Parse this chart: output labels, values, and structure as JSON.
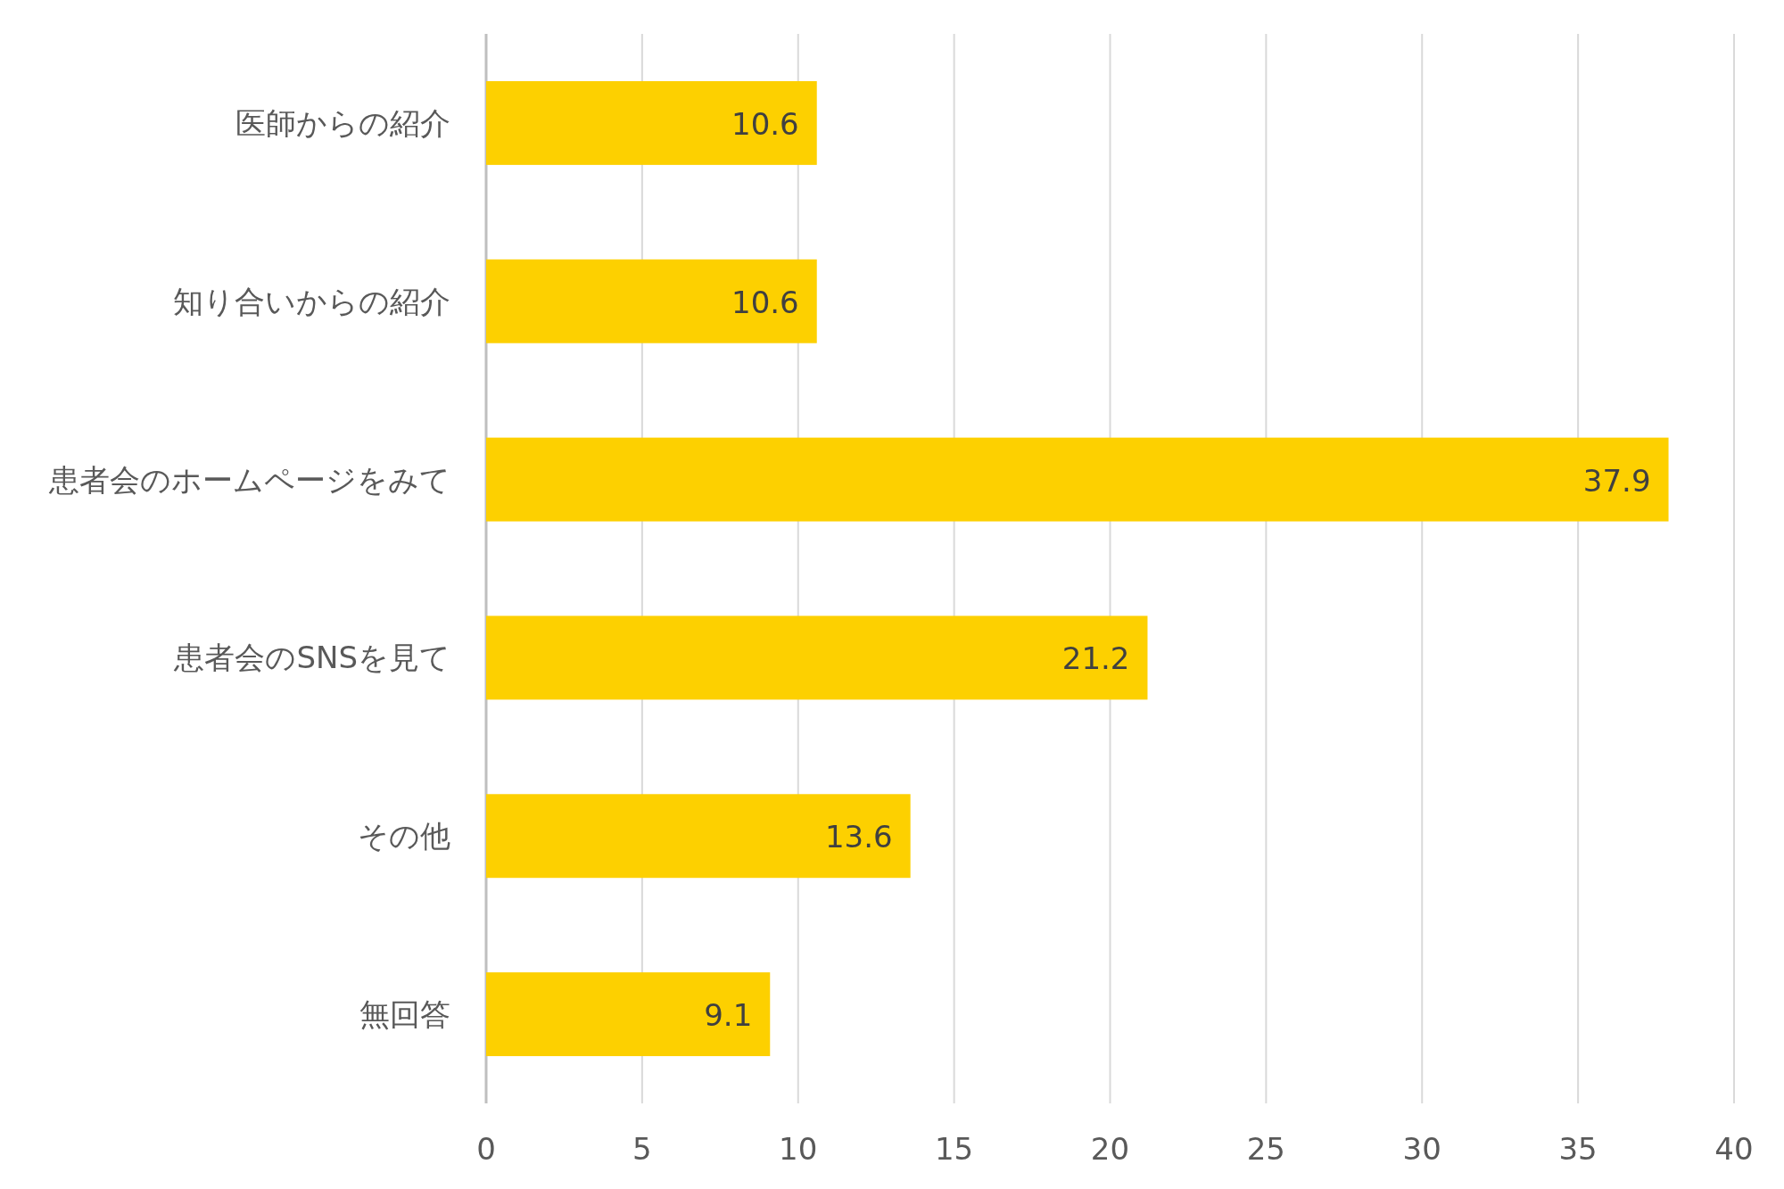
{
  "chart_data": {
    "type": "bar",
    "orientation": "horizontal",
    "categories": [
      "医師からの紹介",
      "知り合いからの紹介",
      "患者会のホームページをみて",
      "患者会のSNSを見て",
      "その他",
      "無回答"
    ],
    "values": [
      10.6,
      10.6,
      37.9,
      21.2,
      13.6,
      9.1
    ],
    "color": "#fdd000",
    "xlim": [
      0,
      40
    ],
    "xticks": [
      0,
      5,
      10,
      15,
      20,
      25,
      30,
      35,
      40
    ],
    "grid": "x",
    "data_labels": true
  }
}
